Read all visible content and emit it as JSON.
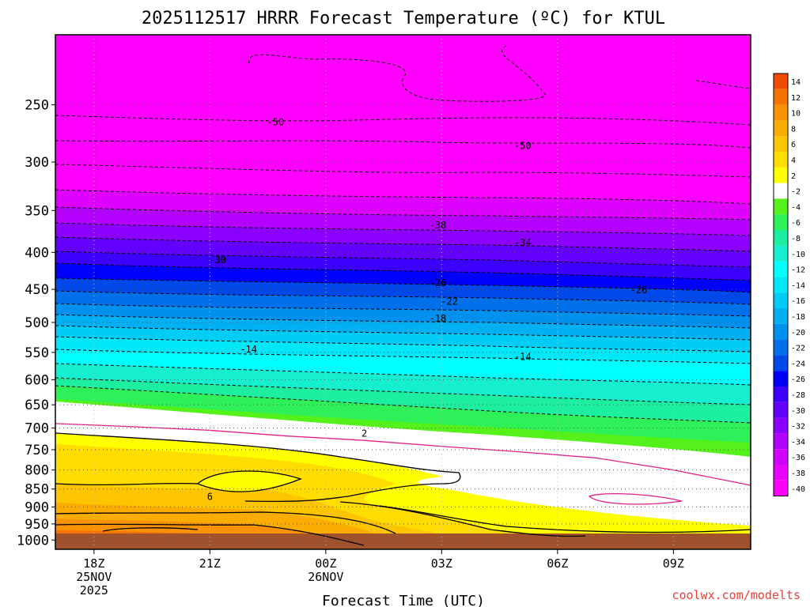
{
  "chart_data": {
    "type": "heatmap",
    "title": "2025112517 HRRR Forecast Temperature (ºC) for KTUL",
    "xlabel": "Forecast Time (UTC)",
    "ylabel": "",
    "x_ticks": [
      {
        "hour": 18,
        "label": "18Z",
        "sub1": "25NOV",
        "sub2": "2025"
      },
      {
        "hour": 21,
        "label": "21Z",
        "sub1": "",
        "sub2": ""
      },
      {
        "hour": 24,
        "label": "00Z",
        "sub1": "26NOV",
        "sub2": ""
      },
      {
        "hour": 27,
        "label": "03Z",
        "sub1": "",
        "sub2": ""
      },
      {
        "hour": 30,
        "label": "06Z",
        "sub1": "",
        "sub2": ""
      },
      {
        "hour": 33,
        "label": "09Z",
        "sub1": "",
        "sub2": ""
      }
    ],
    "xlim": [
      17,
      35
    ],
    "y_ticks": [
      250,
      300,
      350,
      400,
      450,
      500,
      550,
      600,
      650,
      700,
      750,
      800,
      850,
      900,
      950,
      1000
    ],
    "ylim": [
      1030,
      200
    ],
    "y_scale": "log-pressure",
    "grid": "dotted",
    "colorbar": {
      "levels": [
        "14",
        "12",
        "10",
        "8",
        "6",
        "4",
        "2",
        "-2",
        "-4",
        "-6",
        "-8",
        "-10",
        "-12",
        "-14",
        "-16",
        "-18",
        "-20",
        "-22",
        "-24",
        "-26",
        "-28",
        "-30",
        "-32",
        "-34",
        "-36",
        "-38",
        "-40"
      ],
      "colors": [
        "#f04b00",
        "#f57300",
        "#f99200",
        "#fbac00",
        "#fdc400",
        "#ffdd00",
        "#ffff00",
        "#ffffff",
        "#54f21a",
        "#2ef058",
        "#1cf0a0",
        "#16eed0",
        "#00ffff",
        "#00e8f8",
        "#00ccf5",
        "#00b0f2",
        "#0090ee",
        "#0070ea",
        "#0048e8",
        "#0000ff",
        "#3c00ff",
        "#6400ff",
        "#8c00ff",
        "#b400ff",
        "#d200ff",
        "#ea00ff",
        "#ff00ff"
      ]
    },
    "contour_labels": [
      {
        "value": "-50",
        "hour": 22.7,
        "p": 264
      },
      {
        "value": "-50",
        "hour": 29.1,
        "p": 285
      },
      {
        "value": "-38",
        "hour": 26.9,
        "p": 367
      },
      {
        "value": "-34",
        "hour": 29.1,
        "p": 388
      },
      {
        "value": "-30",
        "hour": 21.2,
        "p": 410
      },
      {
        "value": "-26",
        "hour": 26.9,
        "p": 441
      },
      {
        "value": "-26",
        "hour": 32.1,
        "p": 451
      },
      {
        "value": "-22",
        "hour": 27.2,
        "p": 468
      },
      {
        "value": "-18",
        "hour": 26.9,
        "p": 494
      },
      {
        "value": "-14",
        "hour": 22.0,
        "p": 545
      },
      {
        "value": "-14",
        "hour": 29.1,
        "p": 558
      },
      {
        "value": "2",
        "hour": 25.0,
        "p": 712
      },
      {
        "value": "6",
        "hour": 21.0,
        "p": 871
      }
    ],
    "freezing_line": [
      {
        "hour": 17,
        "p": 690
      },
      {
        "hour": 19,
        "p": 697
      },
      {
        "hour": 21,
        "p": 705
      },
      {
        "hour": 23,
        "p": 718
      },
      {
        "hour": 25,
        "p": 728
      },
      {
        "hour": 27,
        "p": 742
      },
      {
        "hour": 29,
        "p": 755
      },
      {
        "hour": 31,
        "p": 770
      },
      {
        "hour": 33,
        "p": 800
      },
      {
        "hour": 35,
        "p": 840
      }
    ]
  },
  "footer": {
    "credit": "coolwx.com/modelts"
  }
}
